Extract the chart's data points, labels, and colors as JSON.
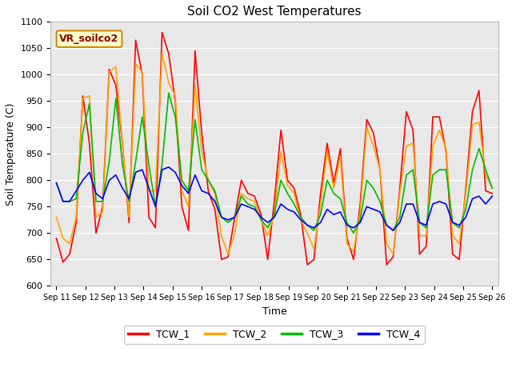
{
  "title": "Soil CO2 West Temperatures",
  "xlabel": "Time",
  "ylabel": "Soil Temperature (C)",
  "ylim": [
    600,
    1100
  ],
  "annotation": "VR_soilco2",
  "bg_color": "#e8e8e8",
  "legend": [
    "TCW_1",
    "TCW_2",
    "TCW_3",
    "TCW_4"
  ],
  "colors": [
    "#ff0000",
    "#ffa500",
    "#00bb00",
    "#0000ff"
  ],
  "x_labels": [
    "Sep 11",
    "Sep 12",
    "Sep 13",
    "Sep 14",
    "Sep 15",
    "Sep 16",
    "Sep 17",
    "Sep 18",
    "Sep 19",
    "Sep 20",
    "Sep 21",
    "Sep 22",
    "Sep 23",
    "Sep 24",
    "Sep 25",
    "Sep 26"
  ],
  "TCW_1": [
    690,
    645,
    660,
    720,
    960,
    870,
    700,
    750,
    1010,
    980,
    870,
    720,
    1065,
    1000,
    730,
    710,
    1080,
    1040,
    950,
    750,
    705,
    1045,
    890,
    780,
    745,
    650,
    655,
    730,
    800,
    775,
    770,
    735,
    650,
    760,
    895,
    800,
    785,
    735,
    640,
    650,
    775,
    870,
    795,
    860,
    690,
    650,
    755,
    915,
    890,
    820,
    640,
    655,
    785,
    930,
    895,
    660,
    675,
    920,
    920,
    855,
    660,
    650,
    785,
    930,
    970,
    780,
    775
  ],
  "TCW_2": [
    730,
    690,
    680,
    730,
    955,
    960,
    730,
    740,
    1005,
    1015,
    870,
    730,
    1020,
    1005,
    780,
    780,
    1040,
    985,
    960,
    780,
    750,
    980,
    855,
    800,
    775,
    695,
    660,
    700,
    775,
    765,
    760,
    725,
    695,
    735,
    855,
    790,
    775,
    725,
    700,
    670,
    755,
    855,
    785,
    845,
    680,
    665,
    740,
    900,
    865,
    820,
    680,
    660,
    775,
    865,
    870,
    695,
    695,
    865,
    895,
    860,
    695,
    680,
    775,
    905,
    910,
    810,
    785
  ],
  "TCW_3": [
    795,
    760,
    760,
    765,
    890,
    945,
    760,
    760,
    835,
    955,
    830,
    760,
    835,
    920,
    830,
    750,
    830,
    965,
    920,
    800,
    780,
    915,
    820,
    800,
    780,
    730,
    720,
    730,
    770,
    755,
    750,
    725,
    710,
    735,
    800,
    775,
    755,
    730,
    715,
    705,
    735,
    800,
    775,
    765,
    720,
    700,
    725,
    800,
    785,
    760,
    715,
    705,
    730,
    810,
    820,
    720,
    710,
    810,
    820,
    820,
    720,
    710,
    745,
    820,
    860,
    820,
    785
  ],
  "TCW_4": [
    795,
    760,
    760,
    780,
    800,
    815,
    775,
    765,
    800,
    810,
    785,
    765,
    815,
    820,
    785,
    750,
    820,
    825,
    815,
    790,
    775,
    810,
    780,
    775,
    760,
    730,
    725,
    730,
    755,
    750,
    745,
    730,
    720,
    730,
    755,
    745,
    740,
    725,
    715,
    710,
    720,
    745,
    735,
    740,
    715,
    710,
    720,
    750,
    745,
    740,
    715,
    705,
    720,
    755,
    755,
    720,
    715,
    755,
    760,
    755,
    720,
    715,
    730,
    765,
    770,
    755,
    770
  ]
}
